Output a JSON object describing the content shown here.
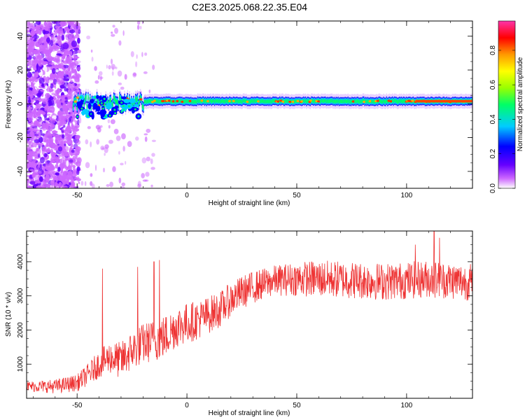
{
  "title": "C2E3.2025.068.22.35.E04",
  "chart_data": [
    {
      "type": "heatmap",
      "xlabel": "Height of straight line (km)",
      "ylabel": "Frequency (Hz)",
      "xlim": [
        -73,
        130
      ],
      "ylim": [
        -50,
        49
      ],
      "x_ticks": [
        -50,
        0,
        50,
        100
      ],
      "x_tick_labels": [
        "-50",
        "0",
        "50",
        "100"
      ],
      "y_ticks": [
        -40,
        -20,
        0,
        20,
        40
      ],
      "y_tick_labels": [
        "-40",
        "-20",
        "0",
        "20",
        "40"
      ],
      "grid": false,
      "description_of_signal": "strong narrow band near 0-2 Hz from about -52 km to 130 km; broadband noise below -52 km",
      "colorbar": {
        "label": "Normalized spectral amplitude",
        "range": [
          0,
          0.97
        ],
        "ticks": [
          0,
          0.2,
          0.4,
          0.6,
          0.8
        ],
        "tick_labels": [
          "0.0",
          "0.2",
          "0.4",
          "0.6",
          "0.8"
        ],
        "colors": [
          "#ffffff",
          "#cc66ff",
          "#6600ff",
          "#0000ff",
          "#00ccff",
          "#00ff66",
          "#99ff00",
          "#ffff00",
          "#ff9900",
          "#ff0000",
          "#ff0066",
          "#ff33aa"
        ]
      },
      "band": {
        "center_hz": 1.5,
        "half_width_hz": 2.5,
        "start_km": -52,
        "end_km": 130
      }
    },
    {
      "type": "line",
      "xlabel": "Height of straight line (km)",
      "ylabel": "SNR (10 * v/v)",
      "xlim": [
        -73,
        130
      ],
      "ylim": [
        0,
        4900
      ],
      "x_ticks": [
        -50,
        0,
        50,
        100
      ],
      "x_tick_labels": [
        "-50",
        "0",
        "50",
        "100"
      ],
      "y_ticks": [
        1000,
        2000,
        3000,
        4000
      ],
      "y_tick_labels": [
        "1000",
        "2000",
        "3000",
        "4000"
      ],
      "grid": false,
      "color": "#ee3333",
      "trend": {
        "x": [
          -73,
          -60,
          -50,
          -45,
          -40,
          -35,
          -30,
          -25,
          -20,
          -15,
          -10,
          -5,
          0,
          5,
          10,
          15,
          20,
          25,
          30,
          35,
          40,
          50,
          60,
          70,
          80,
          90,
          100,
          110,
          120,
          130
        ],
        "y": [
          350,
          350,
          450,
          700,
          1000,
          1200,
          1100,
          1400,
          1600,
          1700,
          1800,
          2100,
          2200,
          2300,
          2450,
          2600,
          2900,
          3100,
          3250,
          3350,
          3450,
          3500,
          3500,
          3480,
          3450,
          3420,
          3450,
          3500,
          3450,
          3400
        ]
      },
      "spread": {
        "x": [
          -73,
          -50,
          -30,
          -10,
          0,
          20,
          40,
          60,
          80,
          100,
          130
        ],
        "y": [
          150,
          250,
          550,
          650,
          600,
          500,
          450,
          550,
          550,
          550,
          550
        ]
      },
      "spikes": [
        {
          "x": -38.5,
          "y": 3800
        },
        {
          "x": -22.5,
          "y": 3850
        },
        {
          "x": -15.0,
          "y": 4000
        },
        {
          "x": -12.5,
          "y": 4050
        },
        {
          "x": 104.0,
          "y": 4500
        },
        {
          "x": 112.5,
          "y": 4900
        },
        {
          "x": 115.0,
          "y": 4700
        }
      ]
    }
  ]
}
